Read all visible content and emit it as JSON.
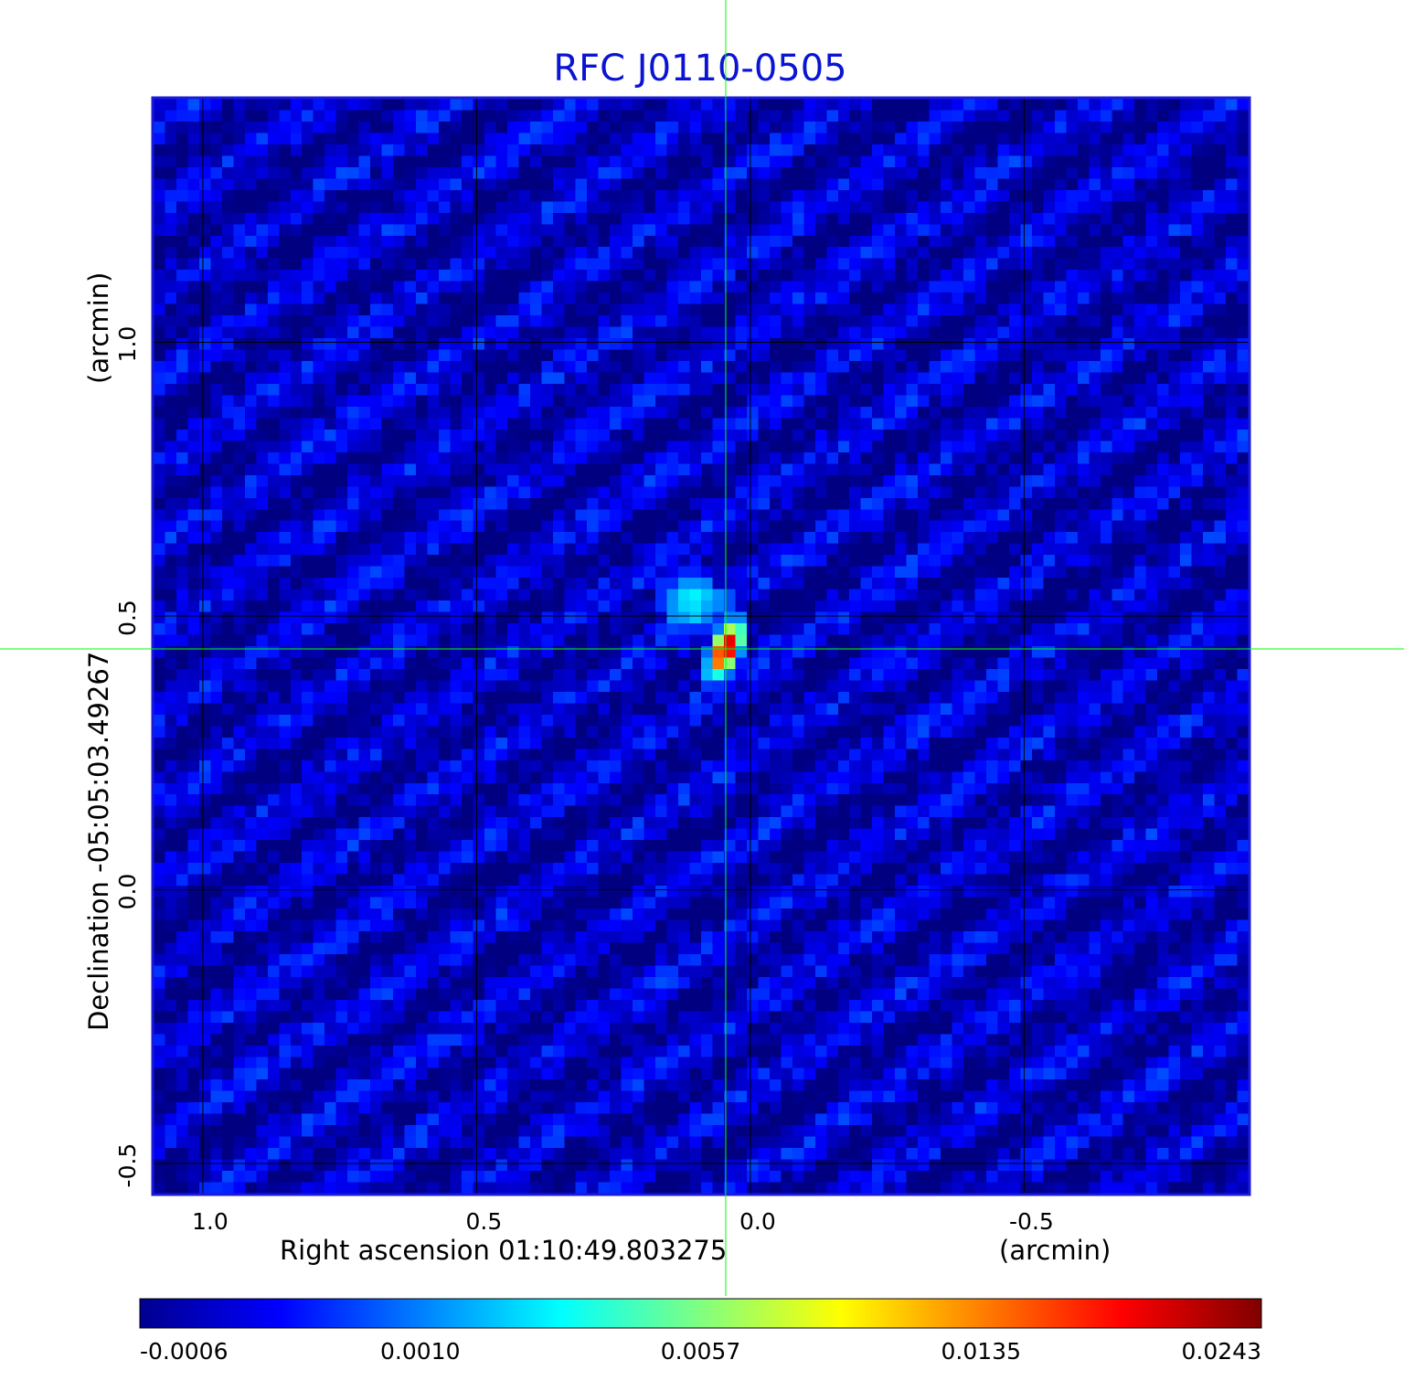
{
  "chart_data": {
    "type": "heatmap",
    "title": "RFC J0110-0505",
    "xlabel": "Right ascension  01:10:49.803275",
    "xlabel_unit": "(arcmin)",
    "ylabel": "Declination  -05:05:03.49267",
    "ylabel_unit": "(arcmin)",
    "x_axis": {
      "reversed": true,
      "range": [
        1.09,
        -0.91
      ],
      "ticks": [
        1.0,
        0.5,
        0.0,
        -0.5
      ],
      "tick_labels": [
        "1.0",
        "0.5",
        "0.0",
        "-0.5"
      ]
    },
    "y_axis": {
      "range": [
        -0.555,
        1.445
      ],
      "ticks": [
        -0.5,
        0.0,
        0.5,
        1.0
      ],
      "tick_labels": [
        "-0.5",
        "0.0",
        "0.5",
        "1.0"
      ]
    },
    "grid": true,
    "grid_color": "#000000",
    "crosshair": {
      "x": 0.045,
      "y": 0.44,
      "color": "#00ff00"
    },
    "source_peak": {
      "x": 0.045,
      "y": 0.44,
      "value": 0.0243
    },
    "background_level": -0.0002,
    "colormap": "jet",
    "colorbar": {
      "placement": "bottom",
      "tick_labels": [
        "-0.0006",
        "0.0010",
        "0.0057",
        "0.0135",
        "0.0243"
      ]
    },
    "colors": {
      "title": "#0a14d2",
      "frame": "#1a1ad8"
    }
  }
}
